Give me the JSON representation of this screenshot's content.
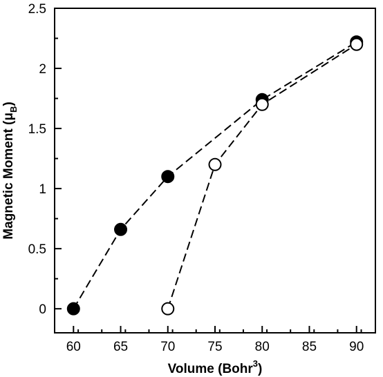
{
  "chart_data": {
    "type": "scatter",
    "xlabel": "Volume (Bohr",
    "xlabel_sup": "3",
    "xlabel_end": ")",
    "ylabel": "Magnetic Moment  (μ",
    "ylabel_sub": "B",
    "ylabel_end": ")",
    "xlim": [
      58,
      92
    ],
    "ylim": [
      -0.2,
      2.5
    ],
    "xticks": [
      60,
      65,
      70,
      75,
      80,
      85,
      90
    ],
    "yticks": [
      0,
      0.5,
      1,
      1.5,
      2,
      2.5
    ],
    "grid": false,
    "series": [
      {
        "marker": "filled-circle",
        "line": "dashed",
        "x": [
          60,
          65,
          70,
          80,
          90
        ],
        "y": [
          0.0,
          0.66,
          1.1,
          1.74,
          2.22
        ]
      },
      {
        "marker": "open-circle",
        "line": "dashed",
        "x": [
          70,
          75,
          80,
          90
        ],
        "y": [
          0.0,
          1.2,
          1.7,
          2.2
        ]
      }
    ]
  }
}
